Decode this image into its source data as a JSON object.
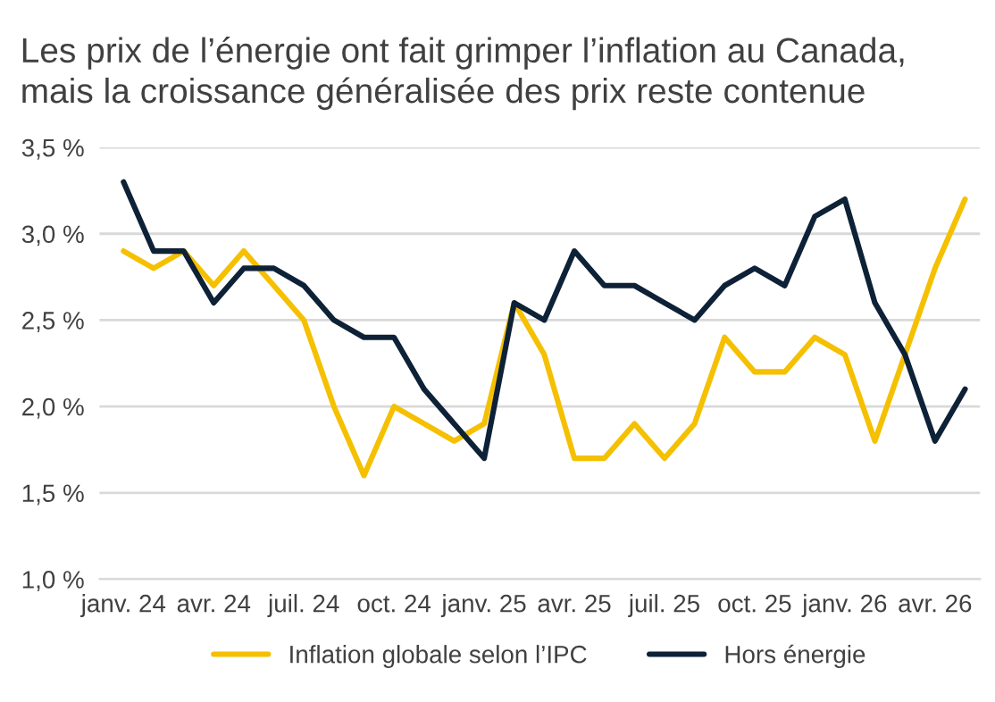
{
  "chart_data": {
    "type": "line",
    "title": "Les prix de l’énergie ont fait grimper l’inflation au Canada,\nmais la croissance généralisée des prix reste contenue",
    "categories": [
      "janv. 24",
      null,
      null,
      "avr. 24",
      null,
      null,
      "juil. 24",
      null,
      null,
      "oct. 24",
      null,
      null,
      "janv. 25",
      null,
      null,
      "avr. 25",
      null,
      null,
      "juil. 25",
      null,
      null,
      "oct. 25",
      null,
      null,
      "janv. 26",
      null,
      null,
      "avr. 26",
      null
    ],
    "series": [
      {
        "name": "Inflation globale selon l’IPC",
        "color": "#f5c000",
        "values": [
          2.9,
          2.8,
          2.9,
          2.7,
          2.9,
          2.7,
          2.5,
          2.0,
          1.6,
          2.0,
          1.9,
          1.8,
          1.9,
          2.6,
          2.3,
          1.7,
          1.7,
          1.9,
          1.7,
          1.9,
          2.4,
          2.2,
          2.2,
          2.4,
          2.3,
          1.8,
          2.3,
          2.8,
          3.2
        ]
      },
      {
        "name": "Hors énergie",
        "color": "#0d2137",
        "values": [
          3.3,
          2.9,
          2.9,
          2.6,
          2.8,
          2.8,
          2.7,
          2.5,
          2.4,
          2.4,
          2.1,
          1.9,
          1.7,
          2.6,
          2.5,
          2.9,
          2.7,
          2.7,
          2.6,
          2.5,
          2.7,
          2.8,
          2.7,
          3.1,
          3.2,
          2.6,
          2.3,
          1.8,
          2.1
        ]
      }
    ],
    "ylim": [
      1.0,
      3.5
    ],
    "yticks": [
      {
        "value": 1.0,
        "label": "1,0 %"
      },
      {
        "value": 1.5,
        "label": "1,5 %"
      },
      {
        "value": 2.0,
        "label": "2,0 %"
      },
      {
        "value": 2.5,
        "label": "2,5 %"
      },
      {
        "value": 3.0,
        "label": "3,0 %"
      },
      {
        "value": 3.5,
        "label": "3,5 %"
      }
    ],
    "grid": "y",
    "legend": "bottom",
    "marker": "none",
    "line_style": "solid"
  }
}
